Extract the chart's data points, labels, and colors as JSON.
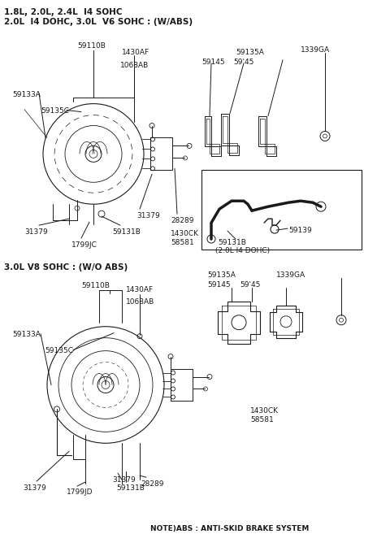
{
  "title_line1": "1.8L, 2.0L, 2.4L  I4 SOHC",
  "title_line2": "2.0L  I4 DOHC, 3.0L  V6 SOHC : (W/ABS)",
  "section2_title": "3.0L V8 SOHC : (W/O ABS)",
  "note": "NOTE)ABS : ANTI-SKID BRAKE SYSTEM",
  "bg_color": "#ffffff",
  "line_color": "#1a1a1a",
  "text_color": "#1a1a1a",
  "font_size": 6.5,
  "title_font_size": 7.5
}
